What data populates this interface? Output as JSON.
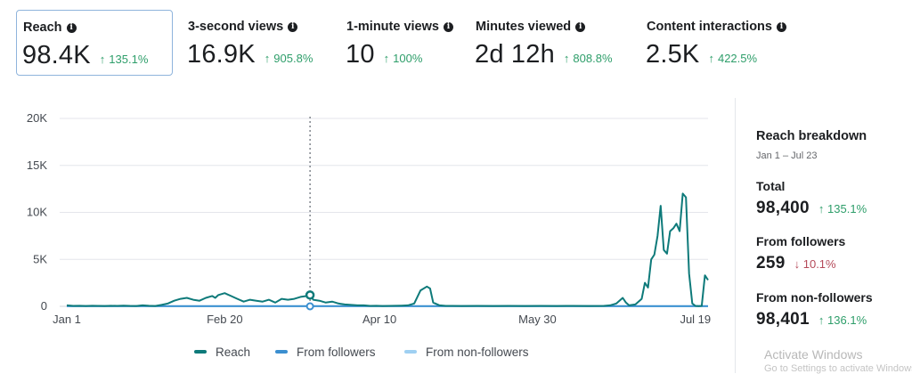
{
  "metrics": [
    {
      "title": "Reach",
      "value": "98.4K",
      "change": "135.1%",
      "direction": "up",
      "selected": true
    },
    {
      "title": "3-second views",
      "value": "16.9K",
      "change": "905.8%",
      "direction": "up",
      "selected": false
    },
    {
      "title": "1-minute views",
      "value": "10",
      "change": "100%",
      "direction": "up",
      "selected": false
    },
    {
      "title": "Minutes viewed",
      "value": "2d 12h",
      "change": "808.8%",
      "direction": "up",
      "selected": false
    },
    {
      "title": "Content interactions",
      "value": "2.5K",
      "change": "422.5%",
      "direction": "up",
      "selected": false
    }
  ],
  "colors": {
    "reach": "#0e7a7a",
    "from_followers": "#3b8fd0",
    "from_non_followers": "#9fd0f2",
    "positive": "#2e9e6a",
    "negative": "#b54a5a"
  },
  "chart_data": {
    "type": "line",
    "ylim": [
      0,
      20000
    ],
    "y_ticks": [
      0,
      5000,
      10000,
      15000,
      20000
    ],
    "y_tick_labels": [
      "0",
      "5K",
      "10K",
      "15K",
      "20K"
    ],
    "x_tick_labels": [
      "Jan 1",
      "Feb 20",
      "Apr 10",
      "May 30",
      "Jul 19"
    ],
    "x_tick_days": [
      0,
      50,
      99,
      149,
      199
    ],
    "x_domain_days": [
      0,
      203
    ],
    "grid": true,
    "legend_position": "bottom",
    "hover_day": 77,
    "hover_values": {
      "reach": 1200,
      "from_followers": 0
    },
    "series": [
      {
        "name": "Reach",
        "color_key": "reach",
        "points": [
          [
            0,
            100
          ],
          [
            2,
            50
          ],
          [
            4,
            60
          ],
          [
            6,
            40
          ],
          [
            8,
            60
          ],
          [
            10,
            50
          ],
          [
            12,
            40
          ],
          [
            14,
            60
          ],
          [
            16,
            50
          ],
          [
            18,
            80
          ],
          [
            20,
            50
          ],
          [
            22,
            40
          ],
          [
            24,
            100
          ],
          [
            26,
            60
          ],
          [
            28,
            40
          ],
          [
            30,
            150
          ],
          [
            32,
            300
          ],
          [
            34,
            600
          ],
          [
            36,
            800
          ],
          [
            38,
            900
          ],
          [
            40,
            700
          ],
          [
            42,
            600
          ],
          [
            44,
            900
          ],
          [
            46,
            1100
          ],
          [
            47,
            900
          ],
          [
            48,
            1200
          ],
          [
            50,
            1400
          ],
          [
            52,
            1100
          ],
          [
            54,
            800
          ],
          [
            56,
            500
          ],
          [
            58,
            700
          ],
          [
            60,
            600
          ],
          [
            62,
            500
          ],
          [
            64,
            700
          ],
          [
            66,
            400
          ],
          [
            68,
            800
          ],
          [
            70,
            700
          ],
          [
            72,
            800
          ],
          [
            74,
            1000
          ],
          [
            76,
            1100
          ],
          [
            77,
            1200
          ],
          [
            78,
            700
          ],
          [
            80,
            600
          ],
          [
            82,
            400
          ],
          [
            84,
            500
          ],
          [
            86,
            300
          ],
          [
            88,
            200
          ],
          [
            90,
            150
          ],
          [
            92,
            100
          ],
          [
            94,
            100
          ],
          [
            96,
            50
          ],
          [
            98,
            60
          ],
          [
            100,
            40
          ],
          [
            102,
            50
          ],
          [
            104,
            60
          ],
          [
            106,
            80
          ],
          [
            108,
            100
          ],
          [
            110,
            300
          ],
          [
            112,
            1700
          ],
          [
            114,
            2100
          ],
          [
            115,
            1900
          ],
          [
            116,
            400
          ],
          [
            118,
            100
          ],
          [
            120,
            50
          ],
          [
            125,
            40
          ],
          [
            130,
            50
          ],
          [
            135,
            40
          ],
          [
            140,
            50
          ],
          [
            145,
            40
          ],
          [
            150,
            50
          ],
          [
            155,
            40
          ],
          [
            160,
            50
          ],
          [
            165,
            40
          ],
          [
            170,
            50
          ],
          [
            172,
            100
          ],
          [
            174,
            300
          ],
          [
            176,
            900
          ],
          [
            177,
            400
          ],
          [
            178,
            100
          ],
          [
            180,
            200
          ],
          [
            182,
            800
          ],
          [
            183,
            2500
          ],
          [
            184,
            2000
          ],
          [
            185,
            5000
          ],
          [
            186,
            5500
          ],
          [
            187,
            7500
          ],
          [
            188,
            10700
          ],
          [
            189,
            6000
          ],
          [
            190,
            5600
          ],
          [
            191,
            8000
          ],
          [
            192,
            8300
          ],
          [
            193,
            8800
          ],
          [
            194,
            8000
          ],
          [
            195,
            12000
          ],
          [
            196,
            11600
          ],
          [
            197,
            3500
          ],
          [
            198,
            300
          ],
          [
            199,
            50
          ],
          [
            200,
            30
          ],
          [
            201,
            50
          ],
          [
            202,
            3300
          ],
          [
            203,
            2800
          ]
        ]
      },
      {
        "name": "From followers",
        "color_key": "from_followers",
        "points": [
          [
            0,
            20
          ],
          [
            50,
            30
          ],
          [
            100,
            20
          ],
          [
            150,
            20
          ],
          [
            203,
            20
          ]
        ]
      },
      {
        "name": "From non-followers",
        "color_key": "from_non_followers",
        "points": [
          [
            0,
            0
          ],
          [
            50,
            0
          ],
          [
            100,
            0
          ],
          [
            150,
            0
          ],
          [
            203,
            0
          ]
        ]
      }
    ]
  },
  "breakdown": {
    "title": "Reach breakdown",
    "date_range": "Jan 1 – Jul 23",
    "rows": [
      {
        "label": "Total",
        "value": "98,400",
        "change": "135.1%",
        "direction": "up"
      },
      {
        "label": "From followers",
        "value": "259",
        "change": "10.1%",
        "direction": "down"
      },
      {
        "label": "From non-followers",
        "value": "98,401",
        "change": "136.1%",
        "direction": "up"
      }
    ]
  },
  "watermark": {
    "title": "Activate Windows",
    "subtitle": "Go to Settings to activate Windows."
  }
}
